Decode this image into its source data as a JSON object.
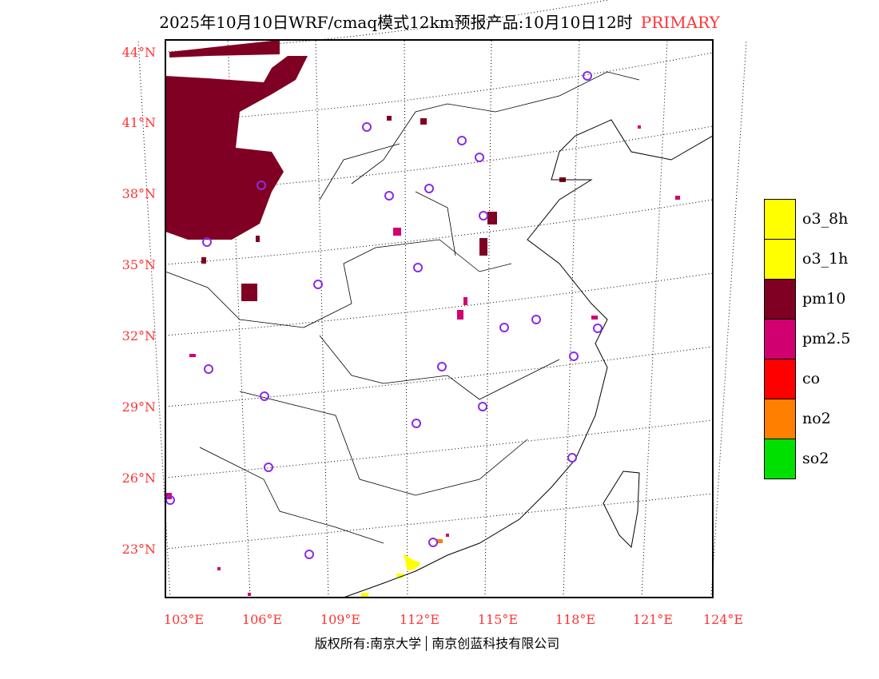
{
  "title": {
    "main": "2025年10月10日WRF/cmaq模式12km预报产品:10月10日12时",
    "tag": "PRIMARY"
  },
  "lat_labels": [
    "44°N",
    "41°N",
    "38°N",
    "35°N",
    "32°N",
    "29°N",
    "26°N",
    "23°N"
  ],
  "lon_labels": [
    "103°E",
    "106°E",
    "109°E",
    "112°E",
    "115°E",
    "118°E",
    "121°E",
    "124°E"
  ],
  "legend": [
    {
      "label": "o3_8h",
      "color": "#ffff00"
    },
    {
      "label": "o3_1h",
      "color": "#ffff00"
    },
    {
      "label": "pm10",
      "color": "#7f0022"
    },
    {
      "label": "pm2.5",
      "color": "#d10070"
    },
    {
      "label": "co",
      "color": "#ff0000"
    },
    {
      "label": "no2",
      "color": "#ff7f00"
    },
    {
      "label": "so2",
      "color": "#00e000"
    }
  ],
  "footer": {
    "left": "版权所有:南京大学",
    "right": "南京创蓝科技有限公司"
  }
}
